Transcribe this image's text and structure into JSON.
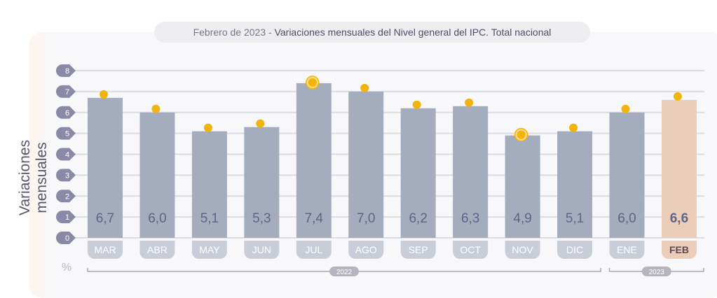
{
  "chart_data": {
    "type": "bar",
    "title_date": "Febrero de 2023",
    "title_separator": " - ",
    "title": "Variaciones mensuales del Nivel general del IPC. Total nacional",
    "ylabel": "Variaciones mensuales",
    "unit": "%",
    "ylim": [
      0,
      8
    ],
    "yticks": [
      "0",
      "1",
      "2",
      "3",
      "4",
      "5",
      "6",
      "7",
      "8"
    ],
    "grid": true,
    "categories": [
      "MAR",
      "ABR",
      "MAY",
      "JUN",
      "JUL",
      "AGO",
      "SEP",
      "OCT",
      "NOV",
      "DIC",
      "ENE",
      "FEB"
    ],
    "values": [
      6.7,
      6.0,
      5.1,
      5.3,
      7.4,
      7.0,
      6.2,
      6.3,
      4.9,
      5.1,
      6.0,
      6.6
    ],
    "value_labels": [
      "6,7",
      "6,0",
      "5,1",
      "5,3",
      "7,4",
      "7,0",
      "6,2",
      "6,3",
      "4,9",
      "5,1",
      "6,0",
      "6,6"
    ],
    "highlighted_markers": [
      "JUL",
      "NOV"
    ],
    "highlight_category": "FEB",
    "year_groups": [
      {
        "label": "2022",
        "from": "MAR",
        "to": "DIC"
      },
      {
        "label": "2023",
        "from": "ENE",
        "to": "FEB"
      }
    ],
    "colors": {
      "bar": "#a3adbd",
      "bar_highlight": "#ebcdb9",
      "marker": "#f2b40a",
      "tick_badge": "#8a8aa6",
      "label_text": "#5c6687"
    }
  }
}
